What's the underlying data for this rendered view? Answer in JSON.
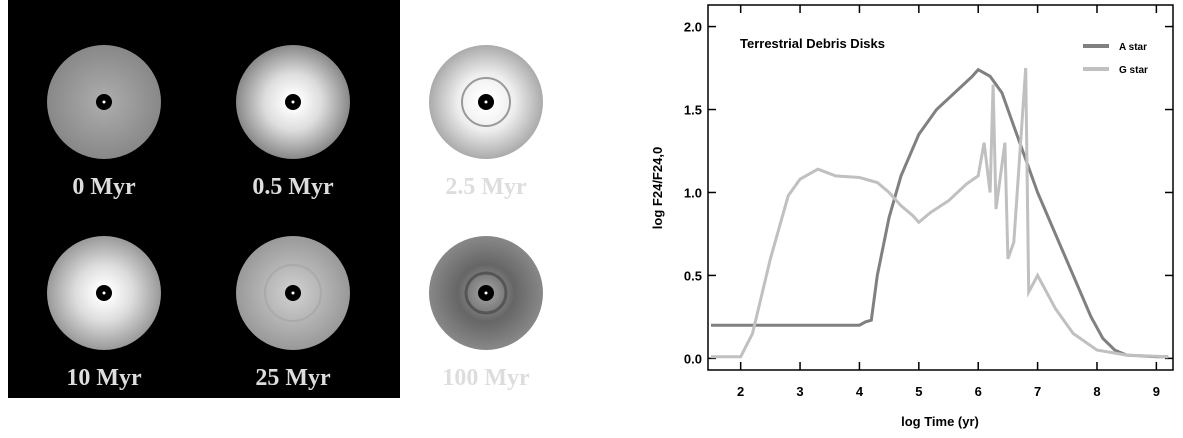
{
  "images": {
    "labels": [
      "0 Myr",
      "0.5 Myr",
      "2.5 Myr",
      "10 Myr",
      "25 Myr",
      "100 Myr"
    ]
  },
  "chart_data": {
    "type": "line",
    "title": "Terrestrial Debris Disks",
    "xlabel": "log Time (yr)",
    "ylabel": "log F24/F24,0",
    "xlim": [
      1.45,
      9.28
    ],
    "ylim": [
      -0.07,
      2.13
    ],
    "xticks": [
      2,
      3,
      4,
      5,
      6,
      7,
      8,
      9
    ],
    "yticks": [
      {
        "value": 0,
        "label": "0.0"
      },
      {
        "value": 0.5,
        "label": "0.5"
      },
      {
        "value": 1,
        "label": "1.0"
      },
      {
        "value": 1.5,
        "label": "1.5"
      },
      {
        "value": 2,
        "label": "2.0"
      }
    ],
    "legend": "upper right",
    "series": [
      {
        "name": "A star",
        "color": "#808080",
        "x": [
          1.5,
          4.0,
          4.1,
          4.2,
          4.3,
          4.5,
          4.7,
          5.0,
          5.3,
          5.6,
          5.9,
          6.0,
          6.2,
          6.4,
          6.6,
          6.8,
          7.0,
          7.3,
          7.6,
          7.9,
          8.1,
          8.3,
          8.5,
          9.0,
          9.2
        ],
        "values": [
          0.2,
          0.2,
          0.22,
          0.23,
          0.5,
          0.85,
          1.1,
          1.35,
          1.5,
          1.6,
          1.7,
          1.74,
          1.7,
          1.6,
          1.4,
          1.2,
          1.0,
          0.75,
          0.5,
          0.25,
          0.12,
          0.05,
          0.02,
          0.01,
          0.01
        ]
      },
      {
        "name": "G star",
        "color": "#c0c0c0",
        "x": [
          1.5,
          2.0,
          2.2,
          2.5,
          2.8,
          3.0,
          3.3,
          3.6,
          4.0,
          4.3,
          4.5,
          4.7,
          4.9,
          5.0,
          5.2,
          5.5,
          5.8,
          6.0,
          6.1,
          6.2,
          6.25,
          6.3,
          6.45,
          6.5,
          6.6,
          6.8,
          6.85,
          7.0,
          7.3,
          7.6,
          8.0,
          8.5,
          9.2
        ],
        "values": [
          0.01,
          0.01,
          0.15,
          0.6,
          0.98,
          1.08,
          1.14,
          1.1,
          1.09,
          1.06,
          1.0,
          0.92,
          0.86,
          0.82,
          0.88,
          0.95,
          1.05,
          1.1,
          1.3,
          1.0,
          1.65,
          0.9,
          1.3,
          0.6,
          0.7,
          1.75,
          0.4,
          0.5,
          0.3,
          0.15,
          0.05,
          0.02,
          0.01
        ]
      }
    ]
  }
}
